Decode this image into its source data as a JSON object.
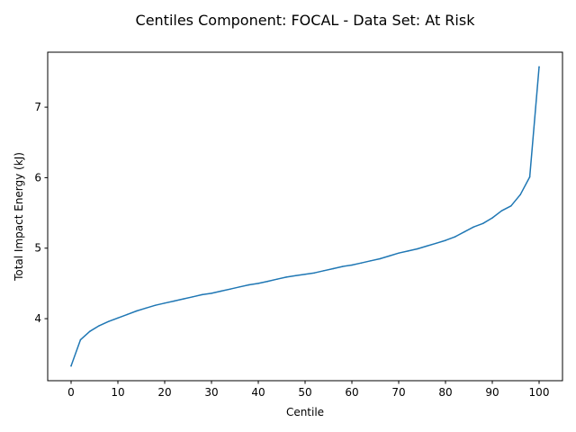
{
  "chart_data": {
    "type": "line",
    "title": "Centiles Component: FOCAL - Data Set: At Risk",
    "xlabel": "Centile",
    "ylabel": "Total Impact Energy (kJ)",
    "xlim": [
      -5,
      105
    ],
    "ylim": [
      3.12,
      7.78
    ],
    "xticks": [
      0,
      10,
      20,
      30,
      40,
      50,
      60,
      70,
      80,
      90,
      100
    ],
    "yticks": [
      4,
      5,
      6,
      7
    ],
    "grid": false,
    "legend": "none",
    "series": [
      {
        "color": "#1f77b4",
        "x": [
          0,
          2,
          4,
          6,
          8,
          10,
          12,
          14,
          16,
          18,
          20,
          22,
          24,
          26,
          28,
          30,
          32,
          34,
          36,
          38,
          40,
          42,
          44,
          46,
          48,
          50,
          52,
          54,
          56,
          58,
          60,
          62,
          64,
          66,
          68,
          70,
          72,
          74,
          76,
          78,
          80,
          82,
          84,
          86,
          88,
          90,
          92,
          94,
          96,
          98,
          100
        ],
        "values": [
          3.33,
          3.7,
          3.82,
          3.9,
          3.96,
          4.01,
          4.06,
          4.11,
          4.15,
          4.19,
          4.22,
          4.25,
          4.28,
          4.31,
          4.34,
          4.36,
          4.39,
          4.42,
          4.45,
          4.48,
          4.5,
          4.53,
          4.56,
          4.59,
          4.61,
          4.63,
          4.65,
          4.68,
          4.71,
          4.74,
          4.76,
          4.79,
          4.82,
          4.85,
          4.89,
          4.93,
          4.96,
          4.99,
          5.03,
          5.07,
          5.11,
          5.16,
          5.23,
          5.3,
          5.35,
          5.43,
          5.53,
          5.6,
          5.76,
          6.01,
          7.57
        ]
      }
    ]
  }
}
